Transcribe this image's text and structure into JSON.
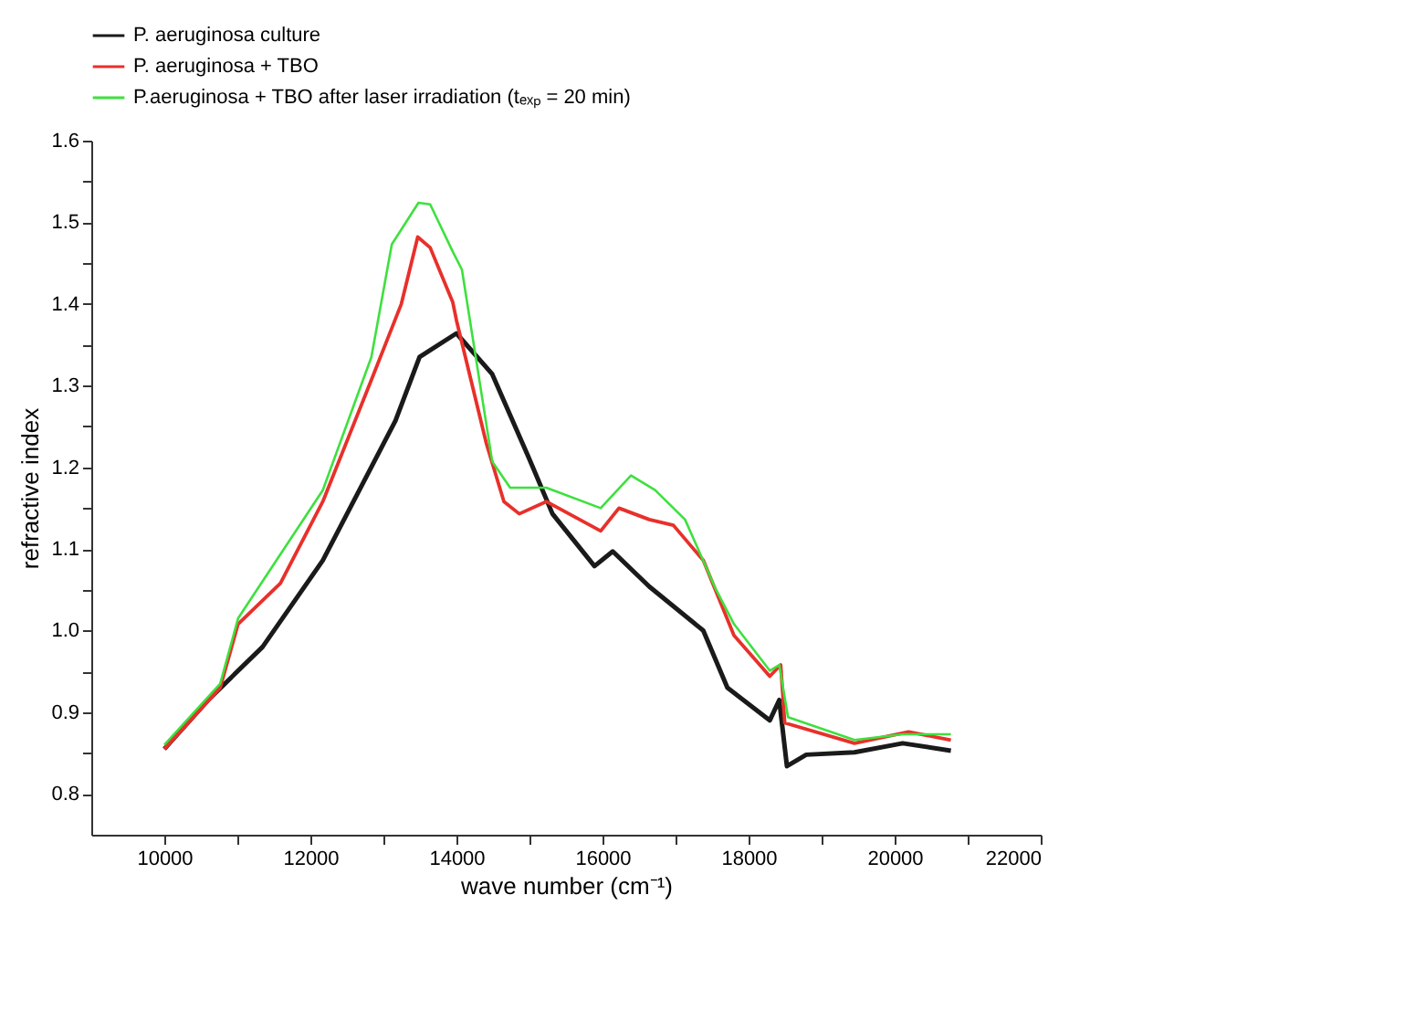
{
  "chart_data": {
    "type": "line",
    "xlabel": "wave number (cm⁻¹)",
    "ylabel": "refractive index",
    "xlim": [
      9000,
      22000
    ],
    "ylim": [
      0.75,
      1.6
    ],
    "xticks": [
      10000,
      {
        "value": 11000,
        "label": null
      },
      12000,
      {
        "value": 13000,
        "label": null
      },
      14000,
      {
        "value": 15000,
        "label": null
      },
      16000,
      {
        "value": 17000,
        "label": null
      },
      18000,
      {
        "value": 19000,
        "label": null
      },
      20000,
      {
        "value": 21000,
        "label": null
      },
      22000
    ],
    "yticks": [
      0.8,
      {
        "value": 0.85,
        "label": null
      },
      0.9,
      {
        "value": 0.95,
        "label": null
      },
      {
        "value": 1.0,
        "label": "1.0"
      },
      {
        "value": 1.05,
        "label": null
      },
      1.1,
      {
        "value": 1.15,
        "label": null
      },
      1.2,
      {
        "value": 1.25,
        "label": null
      },
      1.3,
      {
        "value": 1.35,
        "label": null
      },
      1.4,
      {
        "value": 1.45,
        "label": null
      },
      1.5,
      {
        "value": 1.55,
        "label": null
      },
      1.6
    ],
    "grid": false,
    "legend": "top",
    "marker": "none",
    "line_style": "solid",
    "series": [
      {
        "name": "P. aeruginosa culture",
        "color": "#1a1a1a",
        "x": [
          10000,
          10600,
          11345,
          12170,
          13165,
          13495,
          14000,
          14490,
          14980,
          15315,
          15890,
          16140,
          16640,
          17380,
          17710,
          18290,
          18420,
          18525,
          18790,
          19450,
          20110,
          20770
        ],
        "values": [
          0.855,
          0.915,
          0.98,
          1.086,
          1.257,
          1.335,
          1.364,
          1.314,
          1.214,
          1.143,
          1.079,
          1.097,
          1.054,
          1.0,
          0.93,
          0.89,
          0.915,
          0.834,
          0.848,
          0.851,
          0.862,
          0.853
        ]
      },
      {
        "name": "P. aeruginosa + TBO",
        "color": "#e8302a",
        "x": [
          10000,
          10765,
          11010,
          11590,
          12170,
          12835,
          13245,
          13470,
          13640,
          13950,
          14000,
          14410,
          14650,
          14860,
          15230,
          15975,
          16225,
          16640,
          16970,
          17380,
          17800,
          18290,
          18440,
          18495,
          19450,
          20190,
          20770
        ],
        "values": [
          0.855,
          0.93,
          1.008,
          1.058,
          1.158,
          1.307,
          1.4,
          1.482,
          1.469,
          1.402,
          1.38,
          1.229,
          1.158,
          1.143,
          1.158,
          1.122,
          1.15,
          1.136,
          1.129,
          1.086,
          0.994,
          0.944,
          0.958,
          0.887,
          0.862,
          0.876,
          0.866
        ]
      },
      {
        "name": "P.aeruginosa + TBO after laser irradiation (tₑₓₚ = 20 min)",
        "color": "#3ee03e",
        "x": [
          10000,
          10765,
          11010,
          12170,
          12835,
          13115,
          13480,
          13640,
          13950,
          14075,
          14490,
          14735,
          15230,
          15975,
          16390,
          16720,
          17130,
          17550,
          17800,
          18290,
          18420,
          18540,
          19450,
          20110,
          20770
        ],
        "values": [
          0.86,
          0.935,
          1.015,
          1.172,
          1.335,
          1.473,
          1.524,
          1.522,
          1.464,
          1.442,
          1.207,
          1.175,
          1.175,
          1.15,
          1.19,
          1.172,
          1.136,
          1.051,
          1.008,
          0.951,
          0.958,
          0.894,
          0.866,
          0.873,
          0.873
        ]
      }
    ]
  }
}
